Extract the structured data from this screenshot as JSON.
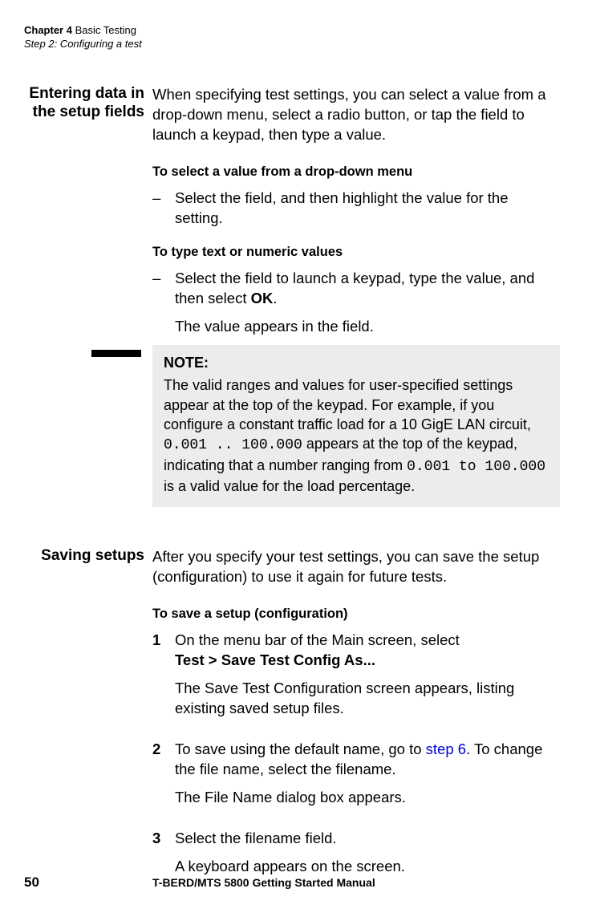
{
  "header": {
    "chapter": "Chapter 4 Basic Testing",
    "step": "Step 2: Configuring a test"
  },
  "section1": {
    "heading": "Entering data in the setup fields",
    "intro": "When specifying test settings, you can select a value from a drop-down menu, select a radio button, or tap the field to launch a keypad, then type a value.",
    "sub1_title": "To select a value from a drop-down menu",
    "sub1_dash": "Select the field, and then highlight the value for the setting.",
    "sub2_title": "To type text or numeric values",
    "sub2_dash_a": "Select the field to launch a keypad, type the value, and then select ",
    "sub2_dash_ok": "OK",
    "sub2_dash_b": ".",
    "sub2_follow": "The value appears in the field.",
    "note_label": "NOTE:",
    "note_a": "The valid ranges and values for user-specified settings appear at the top of the keypad. For example, if you configure a constant traffic load for a 10 GigE LAN circuit, ",
    "note_code1": "0.001 .. 100.000",
    "note_b": " appears at the top of the keypad, indicating that a number ranging from ",
    "note_code2": "0.001 to 100.000",
    "note_c": " is a valid value for the load percentage."
  },
  "section2": {
    "heading": "Saving setups",
    "intro": "After you specify your test settings, you can save the setup (configuration) to use it again for future tests.",
    "sub_title": "To save a setup (configuration)",
    "step1_num": "1",
    "step1_a": "On the menu bar of the Main screen, select",
    "step1_b": "Test > Save Test Config As...",
    "step1_follow": "The Save Test Configuration screen appears, listing existing saved setup files.",
    "step2_num": "2",
    "step2_a": "To save using the default name, go to ",
    "step2_link": "step 6",
    "step2_b": ". To change the file name, select the filename.",
    "step2_follow": "The File Name dialog box appears.",
    "step3_num": "3",
    "step3_text": "Select the filename field.",
    "step3_follow": "A keyboard appears on the screen."
  },
  "footer": {
    "page": "50",
    "title": "T-BERD/MTS 5800 Getting Started Manual"
  }
}
